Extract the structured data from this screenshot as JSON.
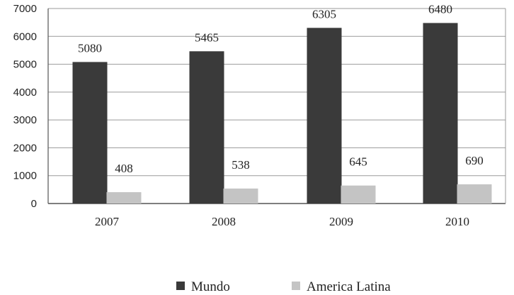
{
  "chart_data": {
    "type": "bar",
    "categories": [
      "2007",
      "2008",
      "2009",
      "2010"
    ],
    "series": [
      {
        "name": "Mundo",
        "values": [
          5080,
          5465,
          6305,
          6480
        ],
        "color": "#3a3a3a"
      },
      {
        "name": "America Latina",
        "values": [
          408,
          538,
          645,
          690
        ],
        "color": "#c4c4c4"
      }
    ],
    "y_ticks": [
      0,
      1000,
      2000,
      3000,
      4000,
      5000,
      6000,
      7000
    ],
    "ylim": [
      0,
      7000
    ],
    "grid": true,
    "legend_position": "bottom"
  },
  "colors": {
    "gridline": "#9a9a9a",
    "frame": "#555555"
  }
}
